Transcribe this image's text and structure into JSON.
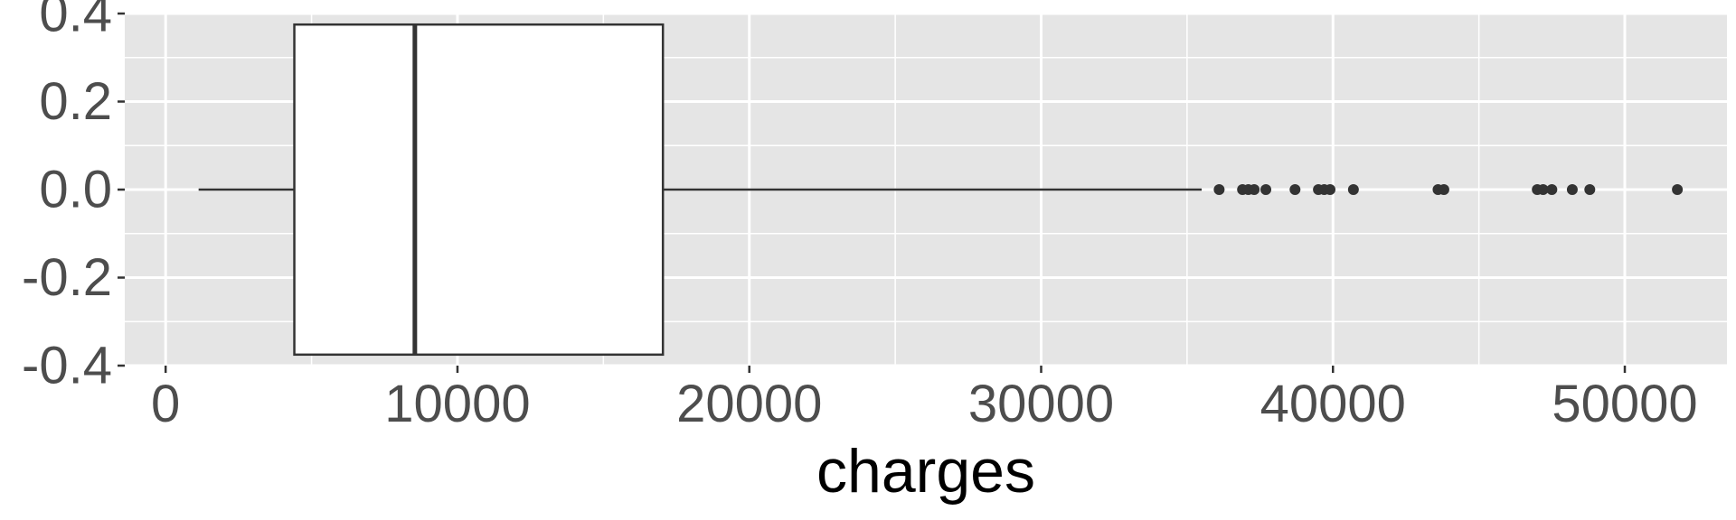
{
  "chart_data": {
    "type": "boxplot",
    "xlabel": "charges",
    "ylabel": "",
    "xlim": [
      -1400,
      53500
    ],
    "ylim": [
      -0.4,
      0.4
    ],
    "x_ticks": [
      0,
      10000,
      20000,
      30000,
      40000,
      50000
    ],
    "x_tick_labels": [
      "0",
      "10000",
      "20000",
      "30000",
      "40000",
      "50000"
    ],
    "y_ticks": [
      0.4,
      0.2,
      0.0,
      -0.2,
      -0.4
    ],
    "y_tick_labels": [
      "0.4",
      "0.2",
      "0.0",
      "-0.2",
      "-0.4"
    ],
    "grid": true,
    "box": {
      "y_center": 0.0,
      "y_extent": [
        -0.375,
        0.375
      ],
      "whisker_low": 1130,
      "q1": 4410,
      "median": 8540,
      "q3": 17040,
      "whisker_high": 35500
    },
    "outliers": [
      36100,
      36900,
      37100,
      37300,
      37700,
      38700,
      39500,
      39700,
      39900,
      40700,
      43600,
      43800,
      47000,
      47200,
      47500,
      48200,
      48800,
      51800
    ],
    "colors": {
      "panel_background": "#e5e5e5",
      "grid_major": "#ffffff",
      "box_fill": "#ffffff",
      "box_line": "#333333",
      "outlier": "#333333",
      "tick_text": "#4d4d4d",
      "title_text": "#000000"
    }
  }
}
